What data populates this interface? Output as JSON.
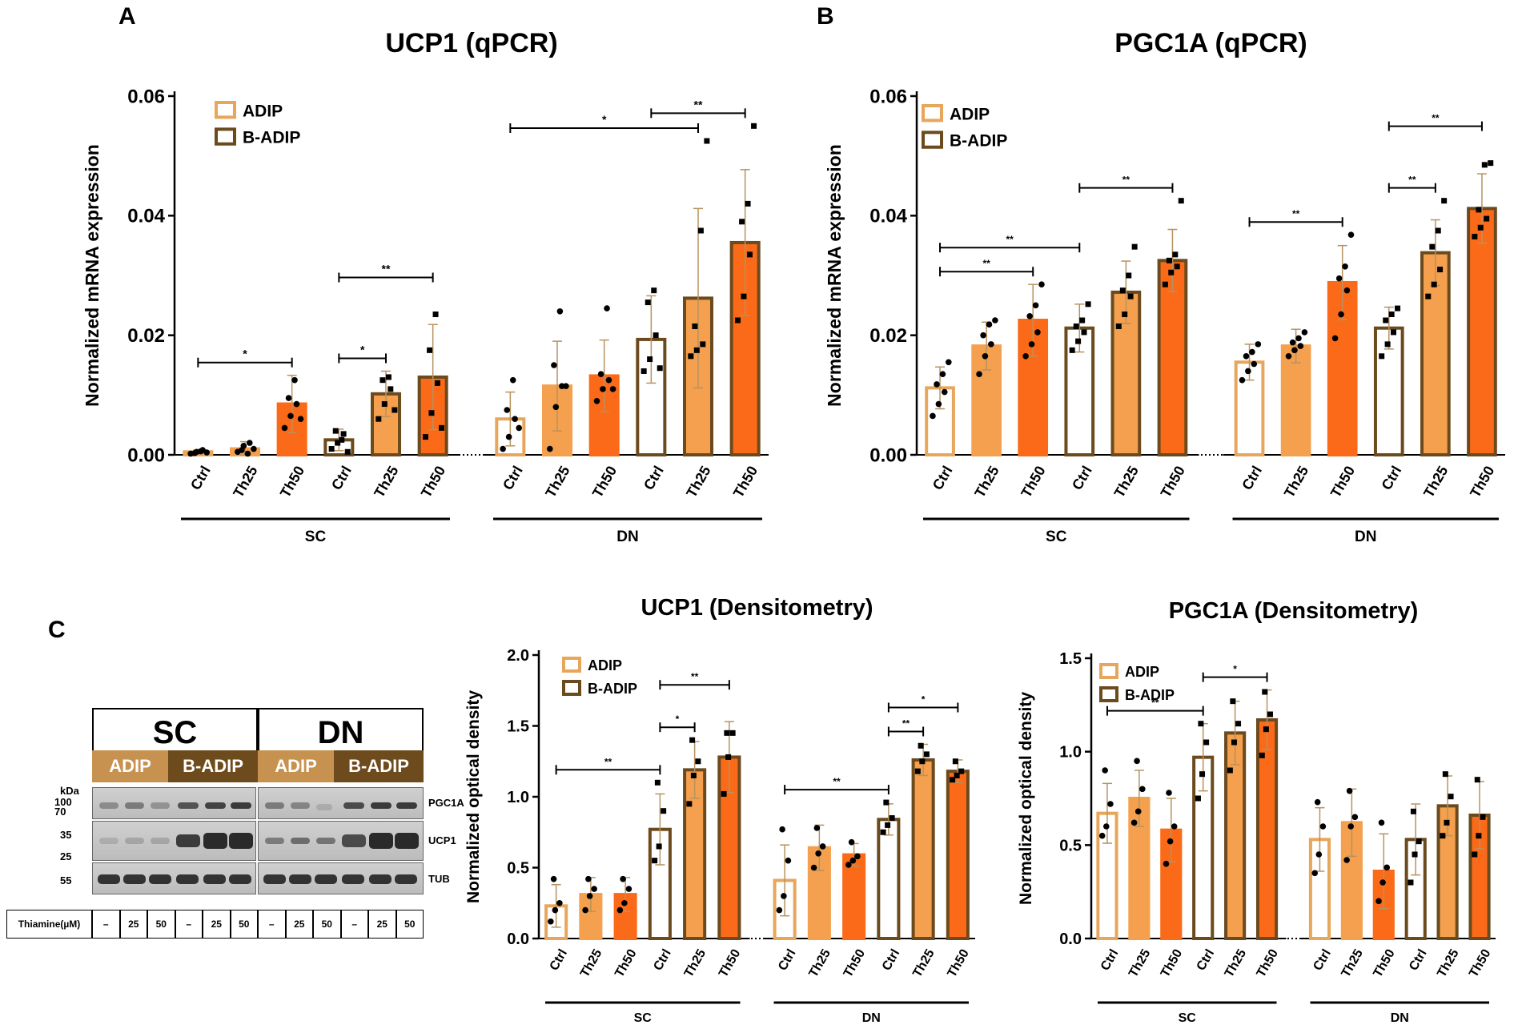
{
  "panels": {
    "a": "A",
    "b": "B",
    "c": "C"
  },
  "colors": {
    "light": "#e8a65c",
    "mid": "#f4a04e",
    "orange": "#fb6a18",
    "dark": "#6b4a1d",
    "brown_sub": "#c79250",
    "brown_sub_dark": "#6e4b1c"
  },
  "legend": {
    "adip": "ADIP",
    "badip": "B-ADIP"
  },
  "charts": [
    {
      "key": "ucp1_qpcr",
      "title": "UCP1 (qPCR)",
      "ylabel": "Normalized mRNA expression",
      "ylim": [
        0,
        0.06
      ],
      "yticks": [
        "0.00",
        "0.02",
        "0.04",
        "0.06"
      ],
      "ytick_values": [
        0,
        0.02,
        0.04,
        0.06
      ],
      "categories": [
        "Ctrl",
        "Th25",
        "Th50",
        "Ctrl",
        "Th25",
        "Th50"
      ],
      "groups": [
        "SC",
        "DN"
      ],
      "chart_data": {
        "type": "bar",
        "title": "UCP1 (qPCR)",
        "ylabel": "Normalized mRNA expression",
        "ylim": [
          0,
          0.06
        ],
        "categories": [
          "Ctrl",
          "Th25",
          "Th50",
          "Ctrl",
          "Th25",
          "Th50"
        ],
        "series": [
          {
            "name": "SC",
            "values": [
              0.0005,
              0.001,
              0.0085,
              0.0025,
              0.0102,
              0.013
            ],
            "errors": [
              0.0003,
              0.0012,
              0.0048,
              0.0018,
              0.0038,
              0.0088
            ]
          },
          {
            "name": "DN",
            "values": [
              0.006,
              0.0115,
              0.0132,
              0.0193,
              0.0262,
              0.0355
            ],
            "errors": [
              0.0045,
              0.0075,
              0.006,
              0.0073,
              0.015,
              0.0122
            ]
          }
        ],
        "points": [
          [
            [
              0.0002,
              0.0005,
              0.0008,
              0.0003,
              0.0006,
              0.0004
            ],
            [
              0.0005,
              0.0015,
              0.002,
              0.0008,
              0.0002,
              0.001
            ],
            [
              0.0045,
              0.0065,
              0.0085,
              0.0095,
              0.0125,
              0.006
            ],
            [
              0.001,
              0.002,
              0.0035,
              0.004,
              0.0025,
              0.0005
            ],
            [
              0.006,
              0.0085,
              0.011,
              0.0125,
              0.013,
              0.0075
            ],
            [
              0.003,
              0.007,
              0.012,
              0.0175,
              0.0235,
              0.0045
            ]
          ],
          [
            [
              0.001,
              0.003,
              0.006,
              0.0075,
              0.0125,
              0.0045
            ],
            [
              0.001,
              0.008,
              0.0115,
              0.015,
              0.024,
              0.0115
            ],
            [
              0.009,
              0.011,
              0.0125,
              0.0135,
              0.0245,
              0.011
            ],
            [
              0.014,
              0.016,
              0.02,
              0.0255,
              0.0275,
              0.0145
            ],
            [
              0.0165,
              0.0175,
              0.0185,
              0.0215,
              0.0375,
              0.0525
            ],
            [
              0.0225,
              0.0265,
              0.0335,
              0.039,
              0.042,
              0.055
            ]
          ]
        ],
        "significance": [
          {
            "group": 0,
            "from": 0,
            "to": 2,
            "label": "*"
          },
          {
            "group": 0,
            "from": 3,
            "to": 4,
            "label": "*"
          },
          {
            "group": 0,
            "from": 3,
            "to": 5,
            "label": "**"
          },
          {
            "group": 1,
            "from": 0,
            "to": 4,
            "label": "*"
          },
          {
            "group": 1,
            "from": 3,
            "to": 5,
            "label": "**"
          }
        ]
      }
    },
    {
      "key": "pgc1a_qpcr",
      "title": "PGC1A (qPCR)",
      "ylabel": "Normalized mRNA expression",
      "ylim": [
        0,
        0.06
      ],
      "yticks": [
        "0.00",
        "0.02",
        "0.04",
        "0.06"
      ],
      "ytick_values": [
        0,
        0.02,
        0.04,
        0.06
      ],
      "categories": [
        "Ctrl",
        "Th25",
        "Th50",
        "Ctrl",
        "Th25",
        "Th50"
      ],
      "groups": [
        "SC",
        "DN"
      ],
      "chart_data": {
        "type": "bar",
        "title": "PGC1A (qPCR)",
        "ylabel": "Normalized mRNA expression",
        "ylim": [
          0,
          0.06
        ],
        "categories": [
          "Ctrl",
          "Th25",
          "Th50",
          "Ctrl",
          "Th25",
          "Th50"
        ],
        "series": [
          {
            "name": "SC",
            "values": [
              0.0112,
              0.0182,
              0.0225,
              0.0212,
              0.0272,
              0.0325
            ],
            "errors": [
              0.0035,
              0.004,
              0.006,
              0.004,
              0.0052,
              0.0052
            ]
          },
          {
            "name": "DN",
            "values": [
              0.0155,
              0.0182,
              0.0288,
              0.0212,
              0.0338,
              0.0412
            ],
            "errors": [
              0.003,
              0.0028,
              0.0062,
              0.0035,
              0.0055,
              0.0058
            ]
          }
        ],
        "points": [
          [
            [
              0.0065,
              0.0085,
              0.0105,
              0.0118,
              0.0135,
              0.0155
            ],
            [
              0.0135,
              0.0165,
              0.0185,
              0.02,
              0.0218,
              0.0225
            ],
            [
              0.0165,
              0.0185,
              0.0205,
              0.0232,
              0.025,
              0.0285
            ],
            [
              0.0175,
              0.019,
              0.0205,
              0.0215,
              0.0225,
              0.0252
            ],
            [
              0.0215,
              0.0235,
              0.0265,
              0.0275,
              0.03,
              0.0348
            ],
            [
              0.0285,
              0.0305,
              0.0315,
              0.0325,
              0.0335,
              0.0425
            ]
          ],
          [
            [
              0.0125,
              0.014,
              0.0152,
              0.0165,
              0.0172,
              0.0185
            ],
            [
              0.0165,
              0.0175,
              0.0182,
              0.0188,
              0.0195,
              0.0205
            ],
            [
              0.0195,
              0.0235,
              0.0275,
              0.0295,
              0.0315,
              0.0368
            ],
            [
              0.0165,
              0.0185,
              0.0205,
              0.0225,
              0.0235,
              0.0245
            ],
            [
              0.0265,
              0.0285,
              0.031,
              0.0348,
              0.0375,
              0.0425
            ],
            [
              0.0365,
              0.038,
              0.0395,
              0.041,
              0.0485,
              0.0488
            ]
          ]
        ],
        "significance": [
          {
            "group": 0,
            "from": 0,
            "to": 2,
            "label": "**"
          },
          {
            "group": 0,
            "from": 0,
            "to": 3,
            "label": "**"
          },
          {
            "group": 0,
            "from": 3,
            "to": 5,
            "label": "**"
          },
          {
            "group": 1,
            "from": 0,
            "to": 2,
            "label": "**"
          },
          {
            "group": 1,
            "from": 3,
            "to": 4,
            "label": "**"
          },
          {
            "group": 1,
            "from": 3,
            "to": 5,
            "label": "**"
          }
        ]
      }
    },
    {
      "key": "ucp1_dens",
      "title": "UCP1 (Densitometry)",
      "ylabel": "Normalized optical density",
      "ylim": [
        0,
        2.0
      ],
      "yticks": [
        "0.0",
        "0.5",
        "1.0",
        "1.5",
        "2.0"
      ],
      "ytick_values": [
        0,
        0.5,
        1.0,
        1.5,
        2.0
      ],
      "categories": [
        "Ctrl",
        "Th25",
        "Th50",
        "Ctrl",
        "Th25",
        "Th50"
      ],
      "groups": [
        "SC",
        "DN"
      ],
      "chart_data": {
        "type": "bar",
        "title": "UCP1 (Densitometry)",
        "ylabel": "Normalized optical density",
        "ylim": [
          0,
          2.0
        ],
        "categories": [
          "Ctrl",
          "Th25",
          "Th50",
          "Ctrl",
          "Th25",
          "Th50"
        ],
        "series": [
          {
            "name": "SC",
            "values": [
              0.23,
              0.31,
              0.31,
              0.77,
              1.19,
              1.28
            ],
            "errors": [
              0.15,
              0.12,
              0.12,
              0.25,
              0.2,
              0.25
            ]
          },
          {
            "name": "DN",
            "values": [
              0.41,
              0.64,
              0.59,
              0.84,
              1.26,
              1.18
            ],
            "errors": [
              0.25,
              0.16,
              0.08,
              0.11,
              0.11,
              0.08
            ]
          }
        ],
        "points": [
          [
            [
              0.12,
              0.2,
              0.25,
              0.42
            ],
            [
              0.2,
              0.3,
              0.35,
              0.42
            ],
            [
              0.2,
              0.25,
              0.35,
              0.42
            ],
            [
              0.55,
              0.65,
              0.9,
              1.1
            ],
            [
              0.95,
              1.15,
              1.25,
              1.4
            ],
            [
              1.02,
              1.28,
              1.45,
              1.45
            ]
          ],
          [
            [
              0.2,
              0.3,
              0.55,
              0.77
            ],
            [
              0.5,
              0.6,
              0.65,
              0.78
            ],
            [
              0.52,
              0.55,
              0.58,
              0.68
            ],
            [
              0.75,
              0.8,
              0.85,
              0.96
            ],
            [
              1.18,
              1.25,
              1.3,
              1.36
            ],
            [
              1.12,
              1.15,
              1.18,
              1.25
            ]
          ]
        ],
        "significance": [
          {
            "group": 0,
            "from": 0,
            "to": 3,
            "label": "**"
          },
          {
            "group": 0,
            "from": 3,
            "to": 4,
            "label": "*"
          },
          {
            "group": 0,
            "from": 3,
            "to": 5,
            "label": "**"
          },
          {
            "group": 1,
            "from": 0,
            "to": 3,
            "label": "**"
          },
          {
            "group": 1,
            "from": 3,
            "to": 4,
            "label": "**"
          },
          {
            "group": 1,
            "from": 3,
            "to": 5,
            "label": "*"
          }
        ]
      }
    },
    {
      "key": "pgc1a_dens",
      "title": "PGC1A (Densitometry)",
      "ylabel": "Normalized optical density",
      "ylim": [
        0,
        1.5
      ],
      "yticks": [
        "0.0",
        "0.5",
        "1.0",
        "1.5"
      ],
      "ytick_values": [
        0,
        0.5,
        1.0,
        1.5
      ],
      "categories": [
        "Ctrl",
        "Th25",
        "Th50",
        "Ctrl",
        "Th25",
        "Th50"
      ],
      "groups": [
        "SC",
        "DN"
      ],
      "chart_data": {
        "type": "bar",
        "title": "PGC1A (Densitometry)",
        "ylabel": "Normalized optical density",
        "ylim": [
          0,
          1.5
        ],
        "categories": [
          "Ctrl",
          "Th25",
          "Th50",
          "Ctrl",
          "Th25",
          "Th50"
        ],
        "series": [
          {
            "name": "SC",
            "values": [
              0.67,
              0.75,
              0.58,
              0.97,
              1.1,
              1.17
            ],
            "errors": [
              0.16,
              0.15,
              0.17,
              0.18,
              0.17,
              0.16
            ]
          },
          {
            "name": "DN",
            "values": [
              0.53,
              0.62,
              0.36,
              0.53,
              0.71,
              0.66
            ],
            "errors": [
              0.17,
              0.18,
              0.2,
              0.19,
              0.16,
              0.18
            ]
          }
        ],
        "points": [
          [
            [
              0.55,
              0.6,
              0.72,
              0.9
            ],
            [
              0.62,
              0.68,
              0.8,
              0.95
            ],
            [
              0.4,
              0.52,
              0.6,
              0.78
            ],
            [
              0.75,
              0.88,
              1.05,
              1.15
            ],
            [
              0.9,
              1.05,
              1.15,
              1.27
            ],
            [
              0.98,
              1.12,
              1.2,
              1.32
            ]
          ],
          [
            [
              0.35,
              0.45,
              0.6,
              0.73
            ],
            [
              0.42,
              0.6,
              0.65,
              0.79
            ],
            [
              0.2,
              0.3,
              0.38,
              0.62
            ],
            [
              0.3,
              0.45,
              0.52,
              0.68
            ],
            [
              0.55,
              0.62,
              0.76,
              0.88
            ],
            [
              0.45,
              0.55,
              0.65,
              0.85
            ]
          ]
        ],
        "significance": [
          {
            "group": 0,
            "from": 0,
            "to": 3,
            "label": "**"
          },
          {
            "group": 0,
            "from": 3,
            "to": 5,
            "label": "*"
          }
        ]
      }
    }
  ],
  "blot": {
    "groups": [
      "SC",
      "DN"
    ],
    "subgroups": [
      "ADIP",
      "B-ADIP",
      "ADIP",
      "B-ADIP"
    ],
    "kda_label": "kDa",
    "markers": [
      "100",
      "70",
      "35",
      "25",
      "55"
    ],
    "proteins": [
      "PGC1A",
      "UCP1",
      "TUB"
    ],
    "thiamine_label": "Thiamine(µM)",
    "thiamine_values": [
      "–",
      "25",
      "50",
      "–",
      "25",
      "50",
      "–",
      "25",
      "50",
      "–",
      "25",
      "50"
    ]
  }
}
